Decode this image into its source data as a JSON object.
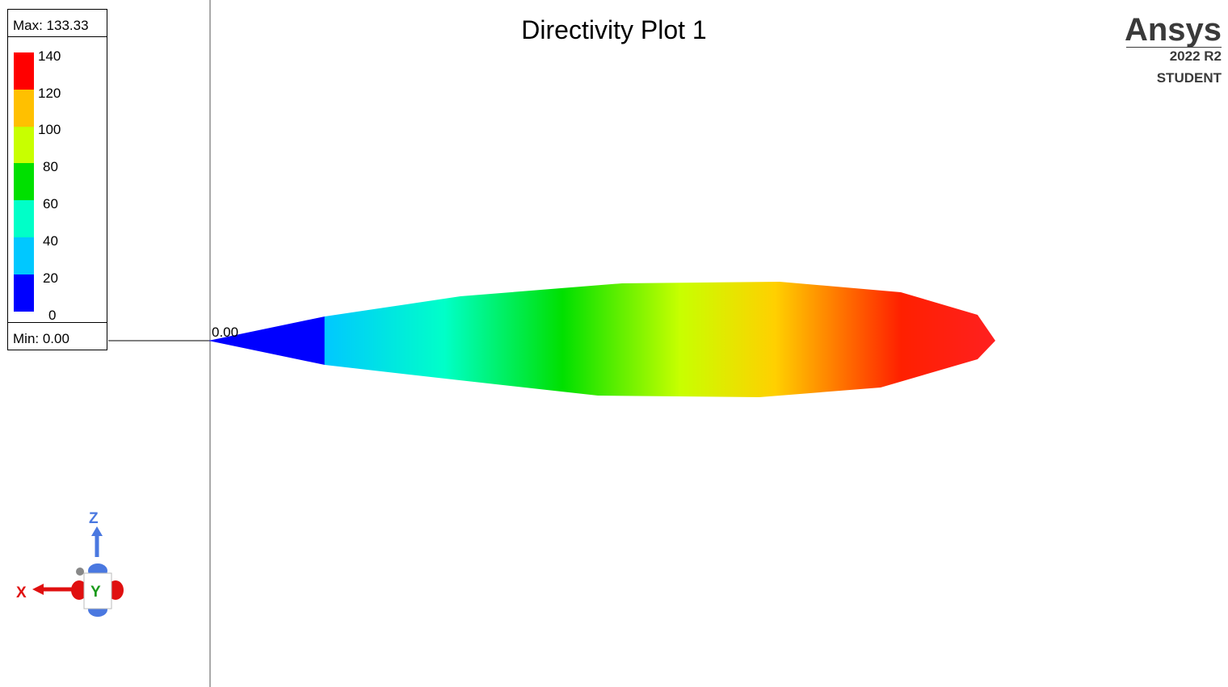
{
  "title": "Directivity Plot 1",
  "brand": {
    "name": "Ansys",
    "release": "2022 R2",
    "edition": "STUDENT"
  },
  "legend": {
    "max_label": "Max: 133.33",
    "min_label": "Min: 0.00",
    "ticks": [
      "140",
      "120",
      "100",
      "80",
      "60",
      "40",
      "20",
      "0"
    ],
    "colors": [
      "#ff0000",
      "#ffc000",
      "#c8ff00",
      "#00e000",
      "#00ffc8",
      "#00c8ff",
      "#0000ff"
    ]
  },
  "origin_label": "0.00",
  "triad": {
    "x": "X",
    "y": "Y",
    "z": "Z"
  }
}
